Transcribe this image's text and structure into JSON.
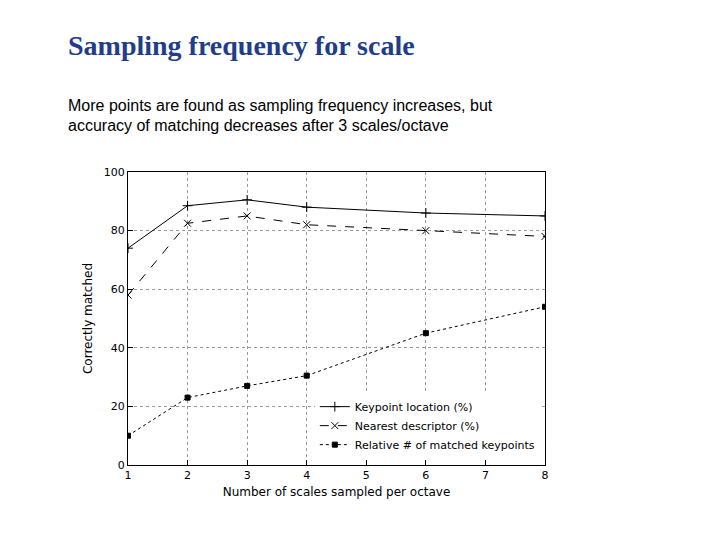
{
  "chart_data": {
    "type": "line",
    "title": "Sampling frequency for scale",
    "subtitle": "More points are found as sampling frequency increases, but accuracy of matching decreases after 3 scales/octave",
    "x_label": "Number of scales sampled per octave",
    "y_label": "Correctly matched",
    "x": [
      1,
      2,
      3,
      4,
      6,
      8
    ],
    "series": [
      {
        "name": "Keypoint location (%)",
        "color": "#000000",
        "marker": "plus",
        "line_style": "solid",
        "values": [
          74,
          88.5,
          90.5,
          88,
          86,
          85
        ]
      },
      {
        "name": "Nearest descriptor (%)",
        "color": "#000000",
        "marker": "x",
        "line_style": "dashed",
        "values": [
          58,
          82.5,
          85,
          82,
          80,
          78
        ]
      },
      {
        "name": "Relative # of matched keypoints",
        "color": "#000000",
        "marker": "square",
        "line_style": "dotted",
        "values": [
          10,
          23,
          27,
          30.5,
          45,
          54
        ]
      }
    ],
    "xlim": [
      1,
      8
    ],
    "xticks": [
      1,
      2,
      3,
      4,
      5,
      6,
      7,
      8
    ],
    "ylim": [
      0,
      100
    ],
    "yticks": [
      0,
      20,
      40,
      60,
      80,
      100
    ],
    "grid": true,
    "legend": "lower right"
  }
}
